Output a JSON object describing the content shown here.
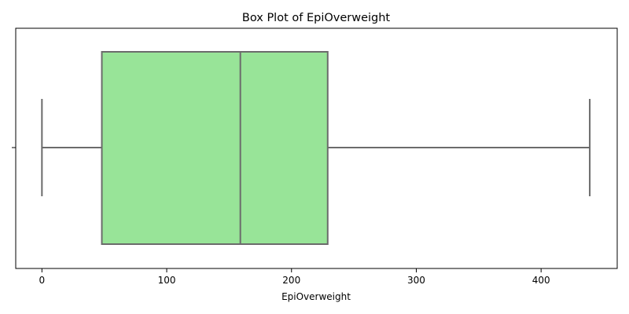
{
  "chart_data": {
    "type": "box",
    "title": "Box Plot of EpiOverweight",
    "xlabel": "EpiOverweight",
    "ylabel": "",
    "orientation": "horizontal",
    "box": {
      "whisker_low": 0,
      "q1": 48,
      "median": 159,
      "q3": 229,
      "whisker_high": 439,
      "fill_color": "#98e498",
      "line_color": "#6b6b6b"
    },
    "xlim": [
      -21,
      461
    ],
    "xticks": [
      0,
      100,
      200,
      300,
      400
    ],
    "xtick_labels": [
      "0",
      "100",
      "200",
      "300",
      "400"
    ],
    "grid": false,
    "legend": "none"
  }
}
